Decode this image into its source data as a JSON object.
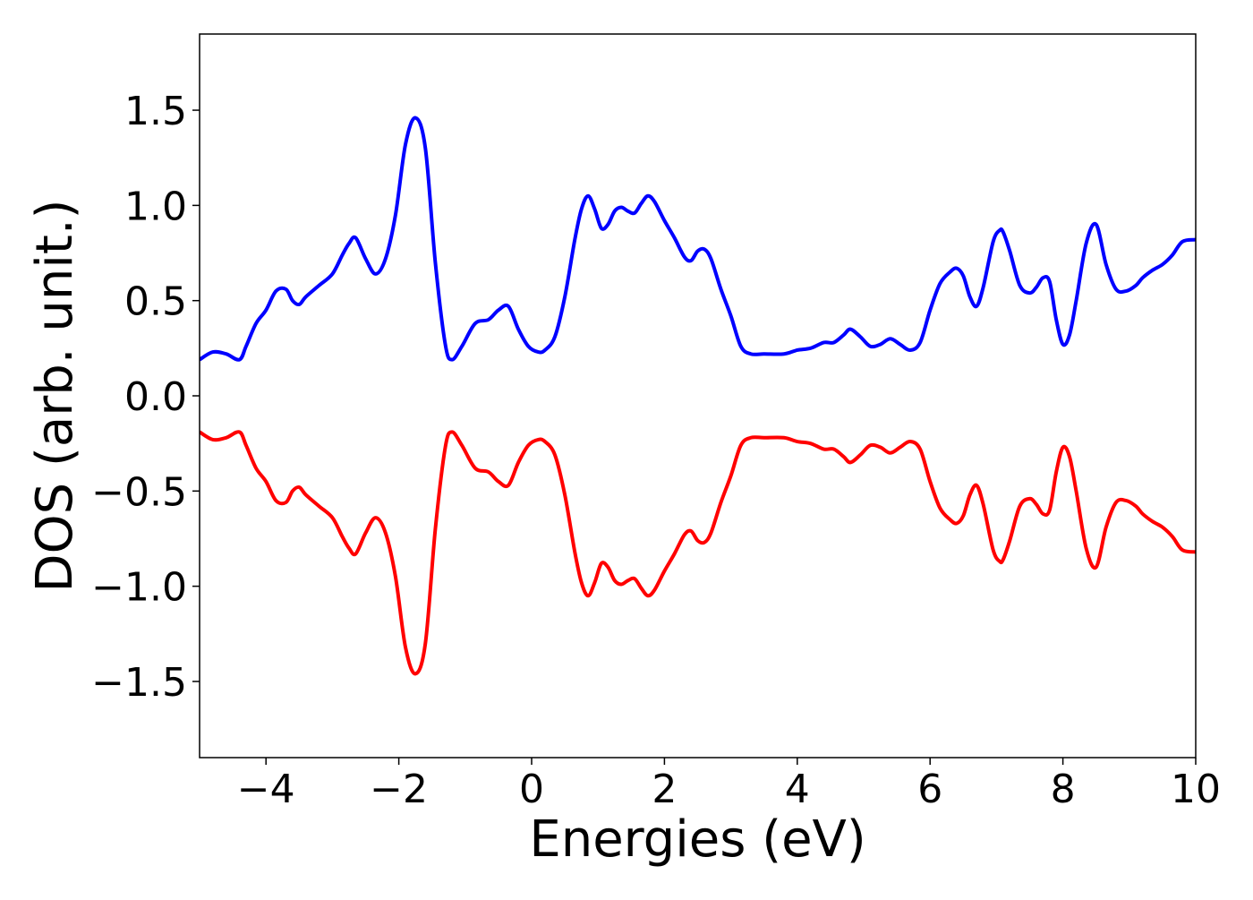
{
  "chart_data": {
    "type": "line",
    "title": "",
    "xlabel": "Energies (eV)",
    "ylabel": "DOS (arb. unit.)",
    "xlim": [
      -5,
      10
    ],
    "ylim": [
      -1.9,
      1.9
    ],
    "grid": false,
    "legend": "none",
    "x_ticks": [
      -4,
      -2,
      0,
      2,
      4,
      6,
      8,
      10
    ],
    "x_tick_labels": [
      "−4",
      "−2",
      "0",
      "2",
      "4",
      "6",
      "8",
      "10"
    ],
    "y_ticks": [
      1.5,
      1.0,
      0.5,
      0.0,
      -0.5,
      -1.0,
      -1.5
    ],
    "y_tick_labels": [
      "1.5",
      "1.0",
      "0.5",
      "0.0",
      "−0.5",
      "−1.0",
      "−1.5"
    ],
    "x": [
      -5.0,
      -4.8,
      -4.6,
      -4.4,
      -4.3,
      -4.15,
      -4.0,
      -3.85,
      -3.7,
      -3.6,
      -3.5,
      -3.4,
      -3.2,
      -3.0,
      -2.85,
      -2.75,
      -2.65,
      -2.5,
      -2.35,
      -2.2,
      -2.05,
      -1.9,
      -1.75,
      -1.6,
      -1.45,
      -1.3,
      -1.2,
      -1.05,
      -0.85,
      -0.65,
      -0.5,
      -0.35,
      -0.2,
      -0.05,
      0.1,
      0.2,
      0.35,
      0.5,
      0.65,
      0.75,
      0.85,
      0.95,
      1.05,
      1.15,
      1.25,
      1.35,
      1.45,
      1.55,
      1.65,
      1.75,
      1.85,
      2.0,
      2.15,
      2.3,
      2.4,
      2.5,
      2.6,
      2.7,
      2.85,
      3.0,
      3.15,
      3.3,
      3.5,
      3.8,
      4.0,
      4.2,
      4.4,
      4.55,
      4.7,
      4.8,
      4.95,
      5.1,
      5.25,
      5.4,
      5.55,
      5.7,
      5.85,
      6.0,
      6.15,
      6.3,
      6.4,
      6.5,
      6.6,
      6.7,
      6.8,
      6.95,
      7.05,
      7.1,
      7.2,
      7.35,
      7.5,
      7.6,
      7.7,
      7.8,
      7.9,
      8.0,
      8.1,
      8.2,
      8.35,
      8.5,
      8.65,
      8.8,
      8.95,
      9.1,
      9.2,
      9.35,
      9.5,
      9.65,
      9.8,
      10.0
    ],
    "series": [
      {
        "color": "#0000ff",
        "values": [
          0.19,
          0.23,
          0.22,
          0.19,
          0.26,
          0.38,
          0.45,
          0.55,
          0.56,
          0.5,
          0.48,
          0.52,
          0.58,
          0.64,
          0.74,
          0.8,
          0.83,
          0.72,
          0.64,
          0.72,
          0.95,
          1.32,
          1.46,
          1.3,
          0.7,
          0.27,
          0.19,
          0.26,
          0.38,
          0.4,
          0.45,
          0.47,
          0.35,
          0.26,
          0.23,
          0.24,
          0.31,
          0.52,
          0.82,
          0.98,
          1.05,
          0.98,
          0.88,
          0.9,
          0.97,
          0.99,
          0.97,
          0.96,
          1.01,
          1.05,
          1.02,
          0.92,
          0.83,
          0.73,
          0.71,
          0.76,
          0.77,
          0.72,
          0.56,
          0.42,
          0.26,
          0.22,
          0.22,
          0.22,
          0.24,
          0.25,
          0.28,
          0.28,
          0.32,
          0.35,
          0.31,
          0.26,
          0.27,
          0.3,
          0.27,
          0.24,
          0.28,
          0.45,
          0.59,
          0.65,
          0.67,
          0.63,
          0.52,
          0.47,
          0.57,
          0.81,
          0.87,
          0.86,
          0.76,
          0.58,
          0.54,
          0.57,
          0.62,
          0.6,
          0.4,
          0.27,
          0.32,
          0.5,
          0.8,
          0.9,
          0.69,
          0.56,
          0.55,
          0.58,
          0.62,
          0.66,
          0.69,
          0.74,
          0.81,
          0.82
        ]
      },
      {
        "color": "#ff0000",
        "values": [
          -0.19,
          -0.23,
          -0.22,
          -0.19,
          -0.26,
          -0.38,
          -0.45,
          -0.55,
          -0.56,
          -0.5,
          -0.48,
          -0.52,
          -0.58,
          -0.64,
          -0.74,
          -0.8,
          -0.83,
          -0.72,
          -0.64,
          -0.72,
          -0.95,
          -1.32,
          -1.46,
          -1.3,
          -0.7,
          -0.27,
          -0.19,
          -0.26,
          -0.38,
          -0.4,
          -0.45,
          -0.47,
          -0.35,
          -0.26,
          -0.23,
          -0.24,
          -0.31,
          -0.52,
          -0.82,
          -0.98,
          -1.05,
          -0.98,
          -0.88,
          -0.9,
          -0.97,
          -0.99,
          -0.97,
          -0.96,
          -1.01,
          -1.05,
          -1.02,
          -0.92,
          -0.83,
          -0.73,
          -0.71,
          -0.76,
          -0.77,
          -0.72,
          -0.56,
          -0.42,
          -0.26,
          -0.22,
          -0.22,
          -0.22,
          -0.24,
          -0.25,
          -0.28,
          -0.28,
          -0.32,
          -0.35,
          -0.31,
          -0.26,
          -0.27,
          -0.3,
          -0.27,
          -0.24,
          -0.28,
          -0.45,
          -0.59,
          -0.65,
          -0.67,
          -0.63,
          -0.52,
          -0.47,
          -0.57,
          -0.81,
          -0.87,
          -0.86,
          -0.76,
          -0.58,
          -0.54,
          -0.57,
          -0.62,
          -0.6,
          -0.4,
          -0.27,
          -0.32,
          -0.5,
          -0.8,
          -0.9,
          -0.69,
          -0.56,
          -0.55,
          -0.58,
          -0.62,
          -0.66,
          -0.69,
          -0.74,
          -0.81,
          -0.82
        ]
      }
    ]
  }
}
